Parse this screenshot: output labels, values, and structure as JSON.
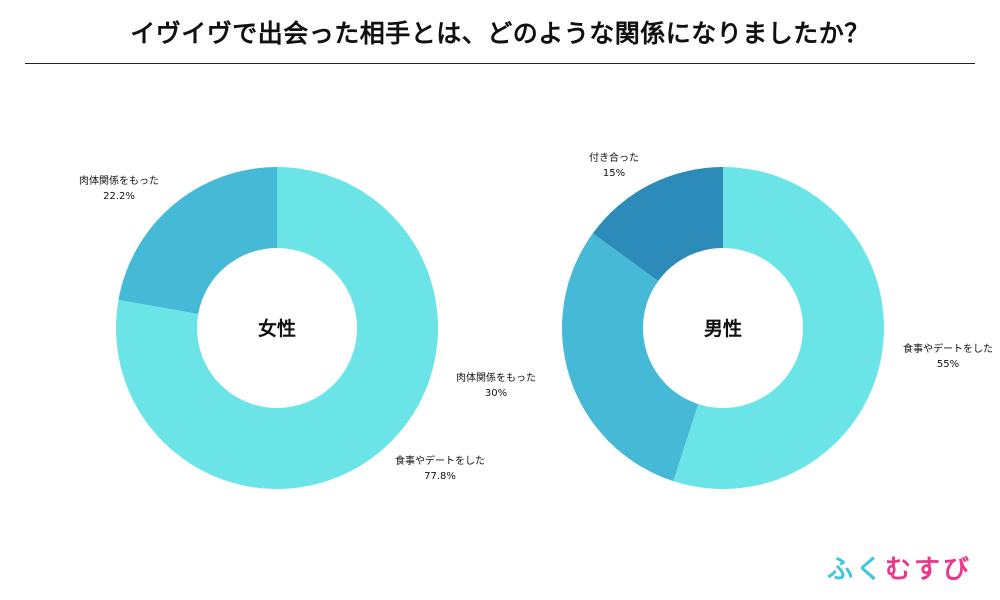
{
  "title": "イヴイヴで出会った相手とは、どのような関係になりましたか？",
  "logo": {
    "part1": "ふく",
    "part2": "むすび"
  },
  "colors": {
    "light": "#6BE4E8",
    "mid": "#45B9D6",
    "dark": "#2C8BB9"
  },
  "chart_data": [
    {
      "type": "pie",
      "center_label": "女性",
      "slices": [
        {
          "name": "食事やデートをした",
          "value": 77.8,
          "label": "77.8%",
          "color": "#6BE4E8"
        },
        {
          "name": "肉体関係をもった",
          "value": 22.2,
          "label": "22.2%",
          "color": "#45B9D6"
        }
      ]
    },
    {
      "type": "pie",
      "center_label": "男性",
      "slices": [
        {
          "name": "食事やデートをした",
          "value": 55,
          "label": "55%",
          "color": "#6BE4E8"
        },
        {
          "name": "肉体関係をもった",
          "value": 30,
          "label": "30%",
          "color": "#45B9D6"
        },
        {
          "name": "付き合った",
          "value": 15,
          "label": "15%",
          "color": "#2C8BB9"
        }
      ]
    }
  ]
}
